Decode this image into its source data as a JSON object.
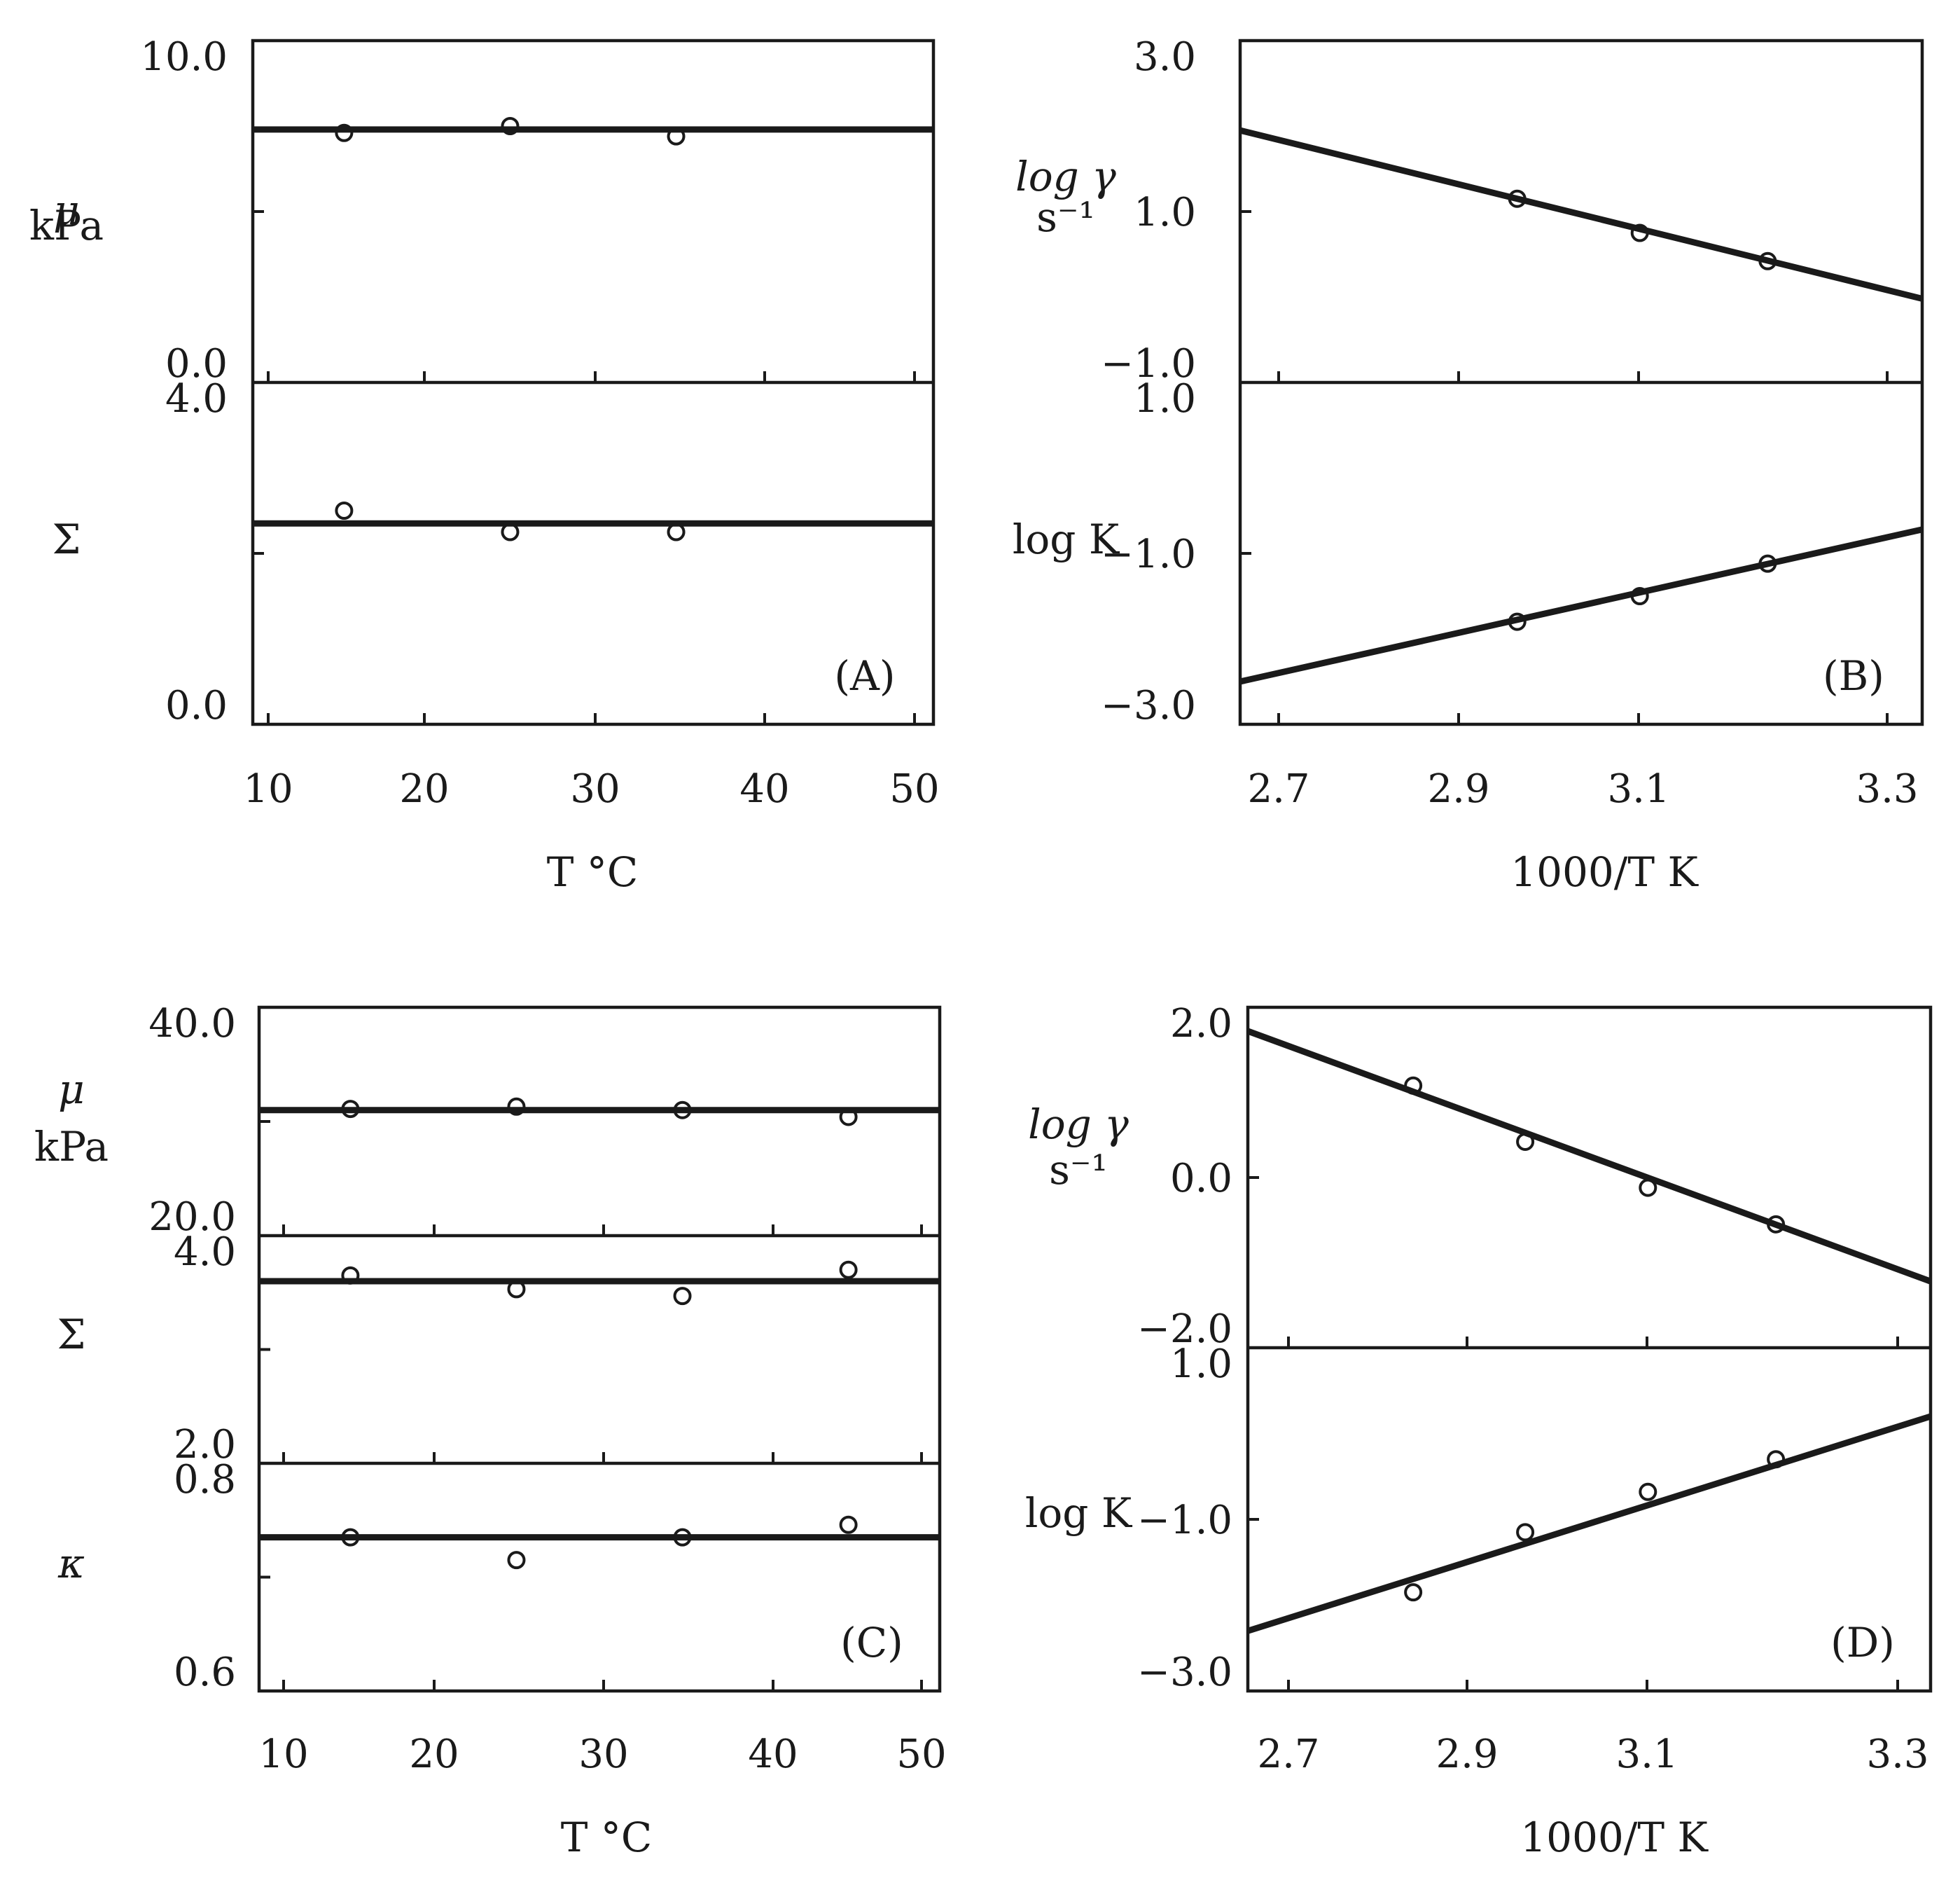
{
  "chart_data": [
    {
      "panel": "(A)",
      "type": "scatter",
      "xlabel": "T  °C",
      "x_ticks": [
        "10",
        "20",
        "30",
        "40",
        "50"
      ],
      "xlim": [
        9,
        50
      ],
      "subplots": [
        {
          "ylabel": [
            "μ",
            "kPa"
          ],
          "ylim": [
            0,
            10
          ],
          "tick_labels": [
            "10.0",
            "0.0"
          ],
          "points": [
            {
              "x": 14.5,
              "y": 7.3
            },
            {
              "x": 24.5,
              "y": 7.5
            },
            {
              "x": 34.5,
              "y": 7.2
            }
          ],
          "fit": [
            [
              9,
              7.4
            ],
            [
              50,
              7.4
            ]
          ]
        },
        {
          "ylabel": [
            "Σ"
          ],
          "ylim": [
            0,
            4
          ],
          "tick_labels": [
            "4.0",
            "0.0"
          ],
          "points": [
            {
              "x": 14.5,
              "y": 2.5
            },
            {
              "x": 24.5,
              "y": 2.25
            },
            {
              "x": 34.5,
              "y": 2.25
            }
          ],
          "fit": [
            [
              9,
              2.35
            ],
            [
              50,
              2.35
            ]
          ]
        }
      ]
    },
    {
      "panel": "(B)",
      "type": "scatter",
      "xlabel": "1000/T   K",
      "x_ticks": [
        "2.7",
        "2.9",
        "3.1",
        "3.3"
      ],
      "xlim": [
        2.68,
        3.32
      ],
      "subplots": [
        {
          "ylabel": [
            "log γ",
            "s⁻¹"
          ],
          "ylim": [
            -1,
            3
          ],
          "tick_labels": [
            "3.0",
            "1.0",
            "−1.0"
          ],
          "points": [
            {
              "x": 2.94,
              "y": 1.15
            },
            {
              "x": 3.055,
              "y": 0.75
            },
            {
              "x": 3.175,
              "y": 0.42
            }
          ],
          "fit": [
            [
              2.68,
              1.95
            ],
            [
              3.32,
              -0.02
            ]
          ]
        },
        {
          "ylabel": [
            "log K"
          ],
          "ylim": [
            -3,
            1
          ],
          "tick_labels": [
            "1.0",
            "−1.0",
            "−3.0"
          ],
          "points": [
            {
              "x": 2.94,
              "y": -1.8
            },
            {
              "x": 3.055,
              "y": -1.5
            },
            {
              "x": 3.175,
              "y": -1.12
            }
          ],
          "fit": [
            [
              2.68,
              -2.5
            ],
            [
              3.32,
              -0.72
            ]
          ]
        }
      ]
    },
    {
      "panel": "(C)",
      "type": "scatter",
      "xlabel": "T  °C",
      "x_ticks": [
        "10",
        "20",
        "30",
        "40",
        "50"
      ],
      "xlim": [
        9,
        50
      ],
      "subplots": [
        {
          "ylabel": [
            "μ",
            "kPa"
          ],
          "ylim": [
            20,
            40
          ],
          "tick_labels": [
            "40.0",
            "20.0"
          ],
          "points": [
            {
              "x": 14.5,
              "y": 31.1
            },
            {
              "x": 24.5,
              "y": 31.3
            },
            {
              "x": 34.5,
              "y": 31.0
            },
            {
              "x": 44.5,
              "y": 30.4
            }
          ],
          "fit": [
            [
              9,
              31.0
            ],
            [
              50,
              31.0
            ]
          ]
        },
        {
          "ylabel": [
            "Σ"
          ],
          "ylim": [
            2,
            4
          ],
          "tick_labels": [
            "4.0",
            "2.0"
          ],
          "points": [
            {
              "x": 14.5,
              "y": 3.65
            },
            {
              "x": 24.5,
              "y": 3.53
            },
            {
              "x": 34.5,
              "y": 3.47
            },
            {
              "x": 44.5,
              "y": 3.7
            }
          ],
          "fit": [
            [
              9,
              3.6
            ],
            [
              50,
              3.6
            ]
          ]
        },
        {
          "ylabel": [
            "κ"
          ],
          "ylim": [
            0.6,
            0.8
          ],
          "tick_labels": [
            "0.8",
            "0.6"
          ],
          "points": [
            {
              "x": 14.5,
              "y": 0.735
            },
            {
              "x": 24.5,
              "y": 0.715
            },
            {
              "x": 34.5,
              "y": 0.735
            },
            {
              "x": 44.5,
              "y": 0.746
            }
          ],
          "fit": [
            [
              9,
              0.735
            ],
            [
              50,
              0.735
            ]
          ]
        }
      ]
    },
    {
      "panel": "(D)",
      "type": "scatter",
      "xlabel": "1000/T   K",
      "x_ticks": [
        "2.7",
        "2.9",
        "3.1",
        "3.3"
      ],
      "xlim": [
        2.68,
        3.32
      ],
      "subplots": [
        {
          "ylabel": [
            "log γ",
            "s⁻¹"
          ],
          "ylim": [
            -2,
            2
          ],
          "tick_labels": [
            "2.0",
            "0.0",
            "−2.0"
          ],
          "points": [
            {
              "x": 2.835,
              "y": 1.08
            },
            {
              "x": 2.94,
              "y": 0.42
            },
            {
              "x": 3.055,
              "y": -0.12
            },
            {
              "x": 3.175,
              "y": -0.55
            }
          ],
          "fit": [
            [
              2.68,
              1.72
            ],
            [
              3.32,
              -1.22
            ]
          ]
        },
        {
          "ylabel": [
            "log K"
          ],
          "ylim": [
            -3,
            1
          ],
          "tick_labels": [
            "1.0",
            "−1.0",
            "−3.0"
          ],
          "points": [
            {
              "x": 2.835,
              "y": -1.85
            },
            {
              "x": 2.94,
              "y": -1.15
            },
            {
              "x": 3.055,
              "y": -0.68
            },
            {
              "x": 3.175,
              "y": -0.3
            }
          ],
          "fit": [
            [
              2.68,
              -2.3
            ],
            [
              3.32,
              0.2
            ]
          ]
        }
      ]
    }
  ]
}
